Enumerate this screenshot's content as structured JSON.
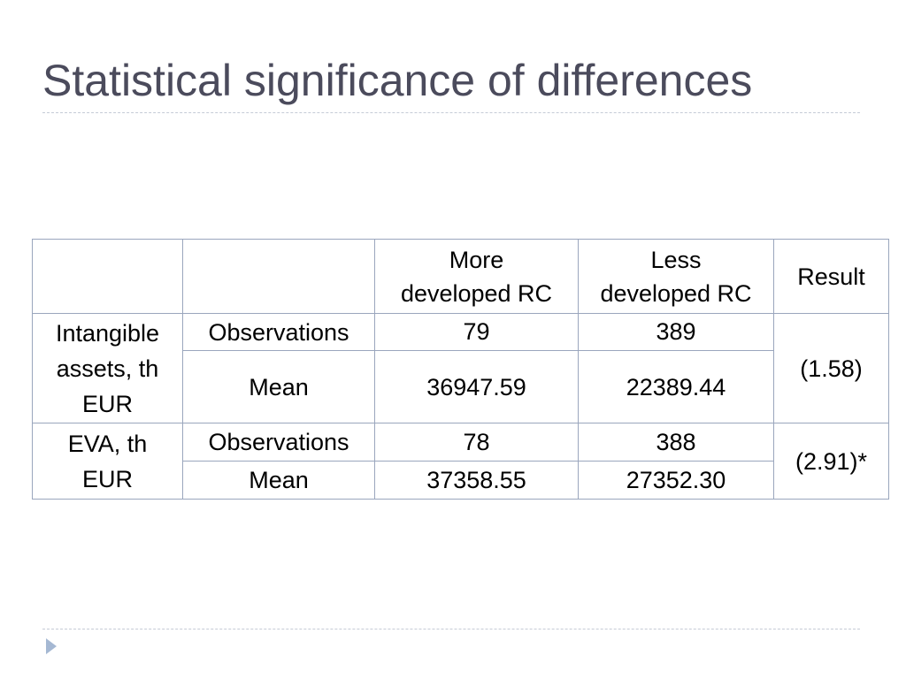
{
  "title": "Statistical significance of differences",
  "table": {
    "columns": [
      "More\ndeveloped RC",
      "Less\ndeveloped RC",
      "Result"
    ],
    "groups": [
      {
        "label": "Intangible\nassets, th\nEUR",
        "result": "(1.58)",
        "rows": [
          {
            "measure": "Observations",
            "values": [
              "79",
              "389"
            ]
          },
          {
            "measure": "Mean",
            "values": [
              "36947.59",
              "22389.44"
            ]
          }
        ]
      },
      {
        "label": "EVA, th\nEUR",
        "result": "(2.91)*",
        "rows": [
          {
            "measure": "Observations",
            "values": [
              "78",
              "388"
            ]
          },
          {
            "measure": "Mean",
            "values": [
              "37358.55",
              "27352.30"
            ]
          }
        ]
      }
    ]
  }
}
